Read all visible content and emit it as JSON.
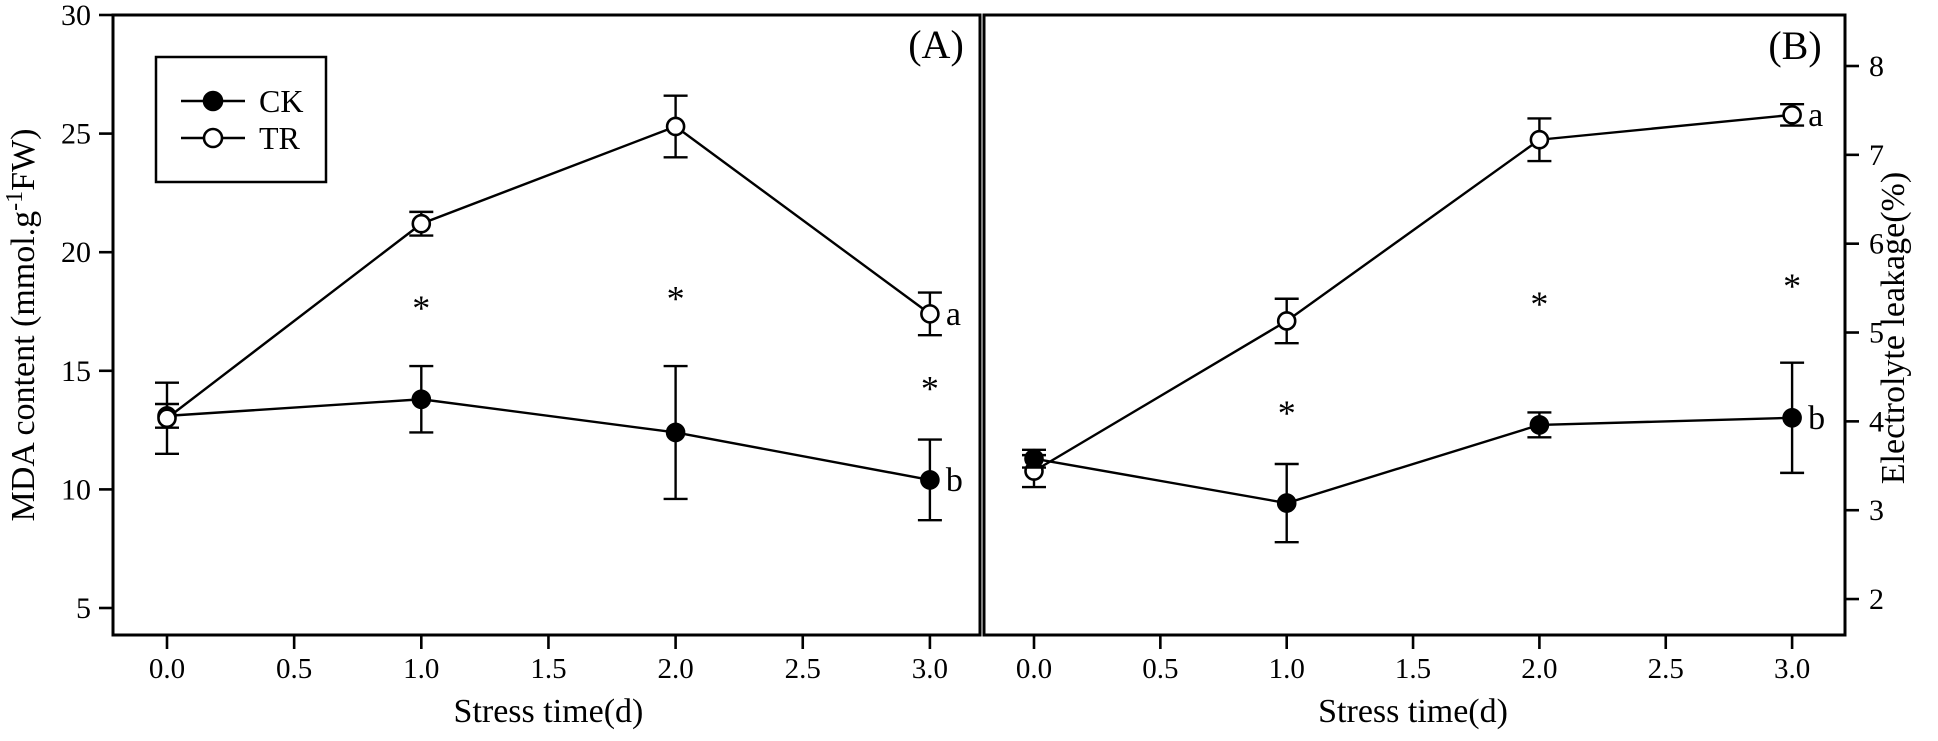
{
  "figure": {
    "background_color": "#ffffff",
    "ink_color": "#000000"
  },
  "chart_data": [
    {
      "type": "line",
      "panel_label": "(A)",
      "xlabel": "Stress time(d)",
      "ylabel": "MDA content (mmol.g-1FW)",
      "ylabel_parts": {
        "pre": "MDA content (mmol.g",
        "sup": "-1",
        "post": "FW)"
      },
      "y_axis_side": "left",
      "xlim": [
        -0.22,
        3.2
      ],
      "ylim": [
        3.9,
        30
      ],
      "x_ticks": [
        "0.0",
        "0.5",
        "1.0",
        "1.5",
        "2.0",
        "2.5",
        "3.0"
      ],
      "y_ticks": [
        5,
        10,
        15,
        20,
        25,
        30
      ],
      "x": [
        0,
        1,
        2,
        3
      ],
      "series": [
        {
          "name": "CK",
          "marker": "filled",
          "values": [
            13.1,
            13.8,
            12.4,
            10.4
          ],
          "errors": [
            0.5,
            1.4,
            2.8,
            1.7
          ]
        },
        {
          "name": "TR",
          "marker": "open",
          "values": [
            13.0,
            21.2,
            25.3,
            17.4
          ],
          "errors": [
            1.5,
            0.5,
            1.3,
            0.9
          ]
        }
      ],
      "legend": {
        "items": [
          {
            "label": "CK",
            "marker": "filled"
          },
          {
            "label": "TR",
            "marker": "open"
          }
        ]
      },
      "asterisks": [
        {
          "x": 1,
          "y": 17.9
        },
        {
          "x": 2,
          "y": 18.3
        },
        {
          "x": 3,
          "y": 14.5
        }
      ],
      "point_labels": [
        {
          "text": "a",
          "x": 3,
          "y": 17.4
        },
        {
          "text": "b",
          "x": 3,
          "y": 10.4
        }
      ]
    },
    {
      "type": "line",
      "panel_label": "(B)",
      "xlabel": "Stress time(d)",
      "ylabel": "Electrolyte leakage(%)",
      "ylabel_parts": null,
      "y_axis_side": "right",
      "xlim": [
        -0.19,
        3.21
      ],
      "ylim": [
        1.6,
        8.57
      ],
      "x_ticks": [
        "0.0",
        "0.5",
        "1.0",
        "1.5",
        "2.0",
        "2.5",
        "3.0"
      ],
      "y_ticks": [
        2,
        3,
        4,
        5,
        6,
        7,
        8
      ],
      "x": [
        0,
        1,
        2,
        3
      ],
      "series": [
        {
          "name": "TR",
          "marker": "open",
          "values": [
            3.44,
            5.13,
            7.17,
            7.45
          ],
          "errors": [
            0.18,
            0.25,
            0.24,
            0.12
          ]
        },
        {
          "name": "CK",
          "marker": "filled",
          "values": [
            3.58,
            3.08,
            3.96,
            4.04
          ],
          "errors": [
            0.1,
            0.44,
            0.14,
            0.62
          ]
        }
      ],
      "legend": null,
      "asterisks": [
        {
          "x": 1,
          "y": 4.16
        },
        {
          "x": 2,
          "y": 5.39
        },
        {
          "x": 3,
          "y": 5.59
        }
      ],
      "point_labels": [
        {
          "text": "a",
          "x": 3,
          "y": 7.45
        },
        {
          "text": "b",
          "x": 3,
          "y": 4.04
        }
      ]
    }
  ]
}
